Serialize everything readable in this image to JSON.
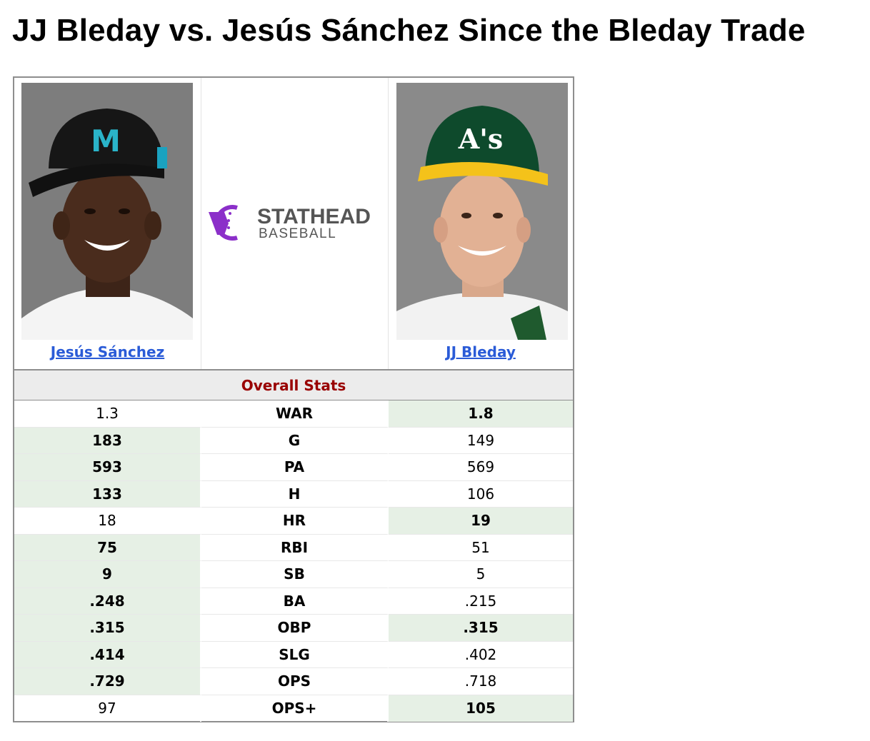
{
  "page_title": "JJ Bleday vs. Jesús Sánchez Since the Bleday Trade",
  "players": {
    "left": {
      "name": "Jesús Sánchez",
      "team_cap_letter": "M"
    },
    "right": {
      "name": "JJ Bleday",
      "team_cap_letter": "A's"
    }
  },
  "logo": {
    "line1": "STATHEAD",
    "line2": "BASEBALL",
    "accent": "#8b2fc9"
  },
  "section_title": "Overall Stats",
  "colors": {
    "leader_bg": "#e6f0e5",
    "section_text": "#990000",
    "link": "#2a5bd7"
  },
  "stats": [
    {
      "stat": "WAR",
      "left": "1.3",
      "right": "1.8",
      "leader": "right"
    },
    {
      "stat": "G",
      "left": "183",
      "right": "149",
      "leader": "left"
    },
    {
      "stat": "PA",
      "left": "593",
      "right": "569",
      "leader": "left"
    },
    {
      "stat": "H",
      "left": "133",
      "right": "106",
      "leader": "left"
    },
    {
      "stat": "HR",
      "left": "18",
      "right": "19",
      "leader": "right"
    },
    {
      "stat": "RBI",
      "left": "75",
      "right": "51",
      "leader": "left"
    },
    {
      "stat": "SB",
      "left": "9",
      "right": "5",
      "leader": "left"
    },
    {
      "stat": "BA",
      "left": ".248",
      "right": ".215",
      "leader": "left"
    },
    {
      "stat": "OBP",
      "left": ".315",
      "right": ".315",
      "leader": "both"
    },
    {
      "stat": "SLG",
      "left": ".414",
      "right": ".402",
      "leader": "left"
    },
    {
      "stat": "OPS",
      "left": ".729",
      "right": ".718",
      "leader": "left"
    },
    {
      "stat": "OPS+",
      "left": "97",
      "right": "105",
      "leader": "right"
    }
  ]
}
